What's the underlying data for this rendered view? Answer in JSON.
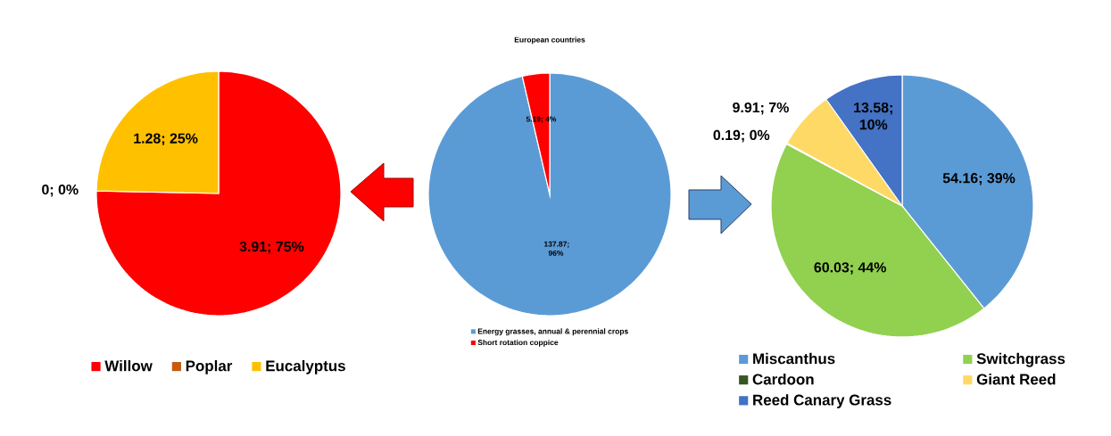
{
  "chart_data": [
    {
      "type": "pie",
      "categories": [
        "Willow",
        "Poplar",
        "Eucalyptus"
      ],
      "values": [
        3.91,
        0,
        1.28
      ],
      "colors": [
        "#ff0000",
        "#c55a11",
        "#ffc000"
      ],
      "value_labels": [
        "3.91; 75%",
        "0; 0%",
        "1.28; 25%"
      ],
      "legend": "bottom"
    },
    {
      "type": "pie",
      "title": "European countries",
      "categories": [
        "Energy grasses, annual & perennial crops",
        "Short rotation coppice"
      ],
      "values": [
        137.87,
        5.19
      ],
      "colors": [
        "#5b9bd5",
        "#ff0000"
      ],
      "value_labels": [
        "137.87; 96%",
        "5.19; 4%"
      ],
      "legend": "bottom"
    },
    {
      "type": "pie",
      "categories": [
        "Miscanthus",
        "Switchgrass",
        "Cardoon",
        "Giant Reed",
        "Reed Canary Grass"
      ],
      "values": [
        54.16,
        60.03,
        0.19,
        9.91,
        13.58
      ],
      "colors": [
        "#5b9bd5",
        "#92d050",
        "#375623",
        "#ffd966",
        "#4472c4"
      ],
      "value_labels": [
        "54.16; 39%",
        "60.03; 44%",
        "0.19; 0%",
        "9.91; 7%",
        "13.58; 10%"
      ],
      "legend": "bottom"
    }
  ]
}
